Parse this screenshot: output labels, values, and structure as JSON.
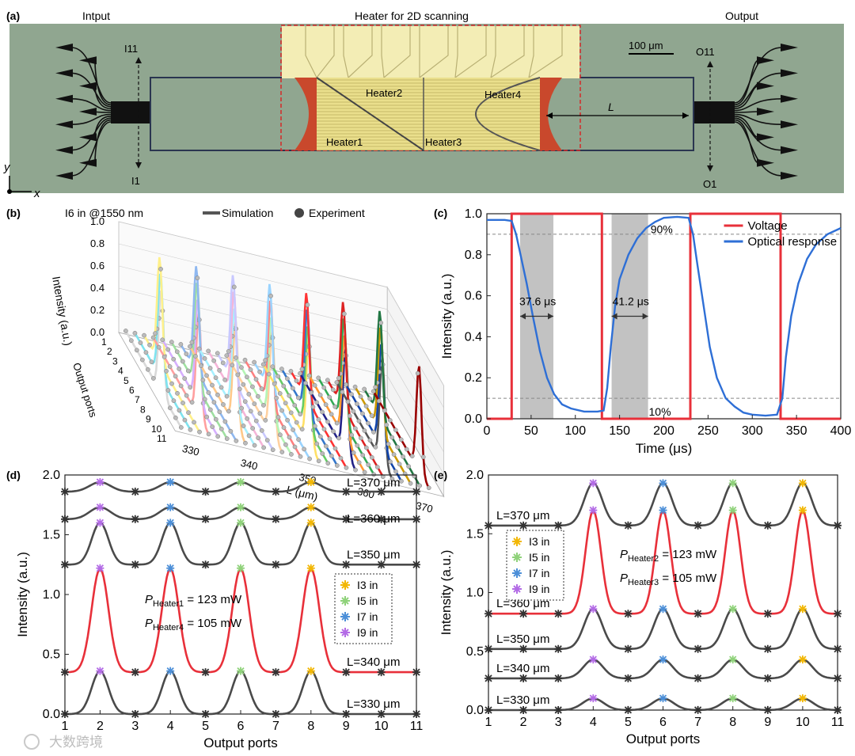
{
  "panel_a": {
    "label": "(a)",
    "title_input": "Intput",
    "title_heater": "Heater for 2D scanning",
    "title_output": "Output",
    "scale_bar": "100 μm",
    "port_top_in": "I11",
    "port_bottom_in": "I1",
    "port_top_out": "O11",
    "port_bottom_out": "O1",
    "heater1": "Heater1",
    "heater2": "Heater2",
    "heater3": "Heater3",
    "heater4": "Heater4",
    "length_label": "L",
    "axis_y": "y",
    "axis_x": "x",
    "colors": {
      "chip": "#8fa48f",
      "heater_pad": "#f2ecb0",
      "heater_zone": "#e9e08c",
      "taper": "#c9482c",
      "box": "#d62828"
    }
  },
  "panel_b": {
    "label": "(b)",
    "condition": "I6 in  @1550 nm",
    "legend_sim": "Simulation",
    "legend_exp": "Experiment",
    "zlabel": "Intensity (a.u.)",
    "ylabel": "Output ports",
    "xlabel": "L (μm)",
    "z_ticks": [
      "1.0",
      "0.8",
      "0.6",
      "0.4",
      "0.2",
      "0.0"
    ],
    "port_ticks": [
      "1",
      "2",
      "3",
      "4",
      "5",
      "6",
      "7",
      "8",
      "9",
      "10",
      "11"
    ],
    "l_ticks": [
      "330",
      "340",
      "350",
      "360",
      "370"
    ]
  },
  "chart_data": [
    {
      "panel": "c",
      "type": "line",
      "label": "(c)",
      "xlabel": "Time (μs)",
      "ylabel": "Intensity (a.u.)",
      "xlim": [
        0,
        400
      ],
      "ylim": [
        0,
        1.0
      ],
      "x_ticks": [
        "0",
        "50",
        "100",
        "150",
        "200",
        "250",
        "300",
        "350",
        "400"
      ],
      "y_ticks": [
        "0.0",
        "0.2",
        "0.4",
        "0.6",
        "0.8",
        "1.0"
      ],
      "series": [
        {
          "name": "Voltage",
          "color": "#e8303a",
          "x": [
            0,
            28,
            28,
            130,
            130,
            230,
            230,
            332,
            332,
            400
          ],
          "y": [
            0,
            0,
            1.0,
            1.0,
            0,
            0,
            1.0,
            1.0,
            0,
            0
          ]
        },
        {
          "name": "Optical response",
          "color": "#2e6fd6",
          "x": [
            0,
            20,
            28,
            33,
            38,
            45,
            52,
            60,
            68,
            76,
            85,
            95,
            110,
            125,
            132,
            136,
            140,
            145,
            150,
            160,
            170,
            180,
            190,
            200,
            215,
            228,
            233,
            238,
            245,
            252,
            260,
            270,
            280,
            290,
            300,
            315,
            328,
            334,
            338,
            344,
            352,
            362,
            372,
            385,
            400
          ],
          "y": [
            0.97,
            0.97,
            0.965,
            0.9,
            0.8,
            0.66,
            0.5,
            0.33,
            0.2,
            0.12,
            0.07,
            0.05,
            0.035,
            0.035,
            0.04,
            0.15,
            0.35,
            0.55,
            0.68,
            0.8,
            0.88,
            0.93,
            0.96,
            0.98,
            0.985,
            0.98,
            0.9,
            0.75,
            0.55,
            0.35,
            0.2,
            0.1,
            0.06,
            0.03,
            0.02,
            0.015,
            0.02,
            0.1,
            0.3,
            0.5,
            0.66,
            0.78,
            0.85,
            0.9,
            0.93
          ]
        }
      ],
      "shaded": [
        [
          37.6,
          75.2
        ],
        [
          141,
          182.2
        ]
      ],
      "guides": [
        0.9,
        0.1
      ],
      "annotations": {
        "fall": "37.6 μs",
        "rise": "41.2 μs",
        "high": "90%",
        "low": "10%"
      }
    },
    {
      "panel": "d",
      "type": "line",
      "label": "(d)",
      "xlabel": "Output ports",
      "ylabel": "Intensity (a.u.)",
      "xlim": [
        1,
        11
      ],
      "ylim": [
        0,
        2.0
      ],
      "x_ticks": [
        "1",
        "2",
        "3",
        "4",
        "5",
        "6",
        "7",
        "8",
        "9",
        "10",
        "11"
      ],
      "y_ticks": [
        "0.0",
        "0.5",
        "1.0",
        "1.5",
        "2.0"
      ],
      "series": [
        {
          "name": "L=330 μm",
          "label": "L=330 μm",
          "color": "#4a4a4a",
          "offset": 0.0,
          "peaks": [
            2,
            4,
            6,
            8
          ],
          "peak": 0.36,
          "base": 0.0,
          "width": 0.24
        },
        {
          "name": "L=340 μm",
          "label": "L=340 μm",
          "color": "#e8303a",
          "offset": 0.35,
          "peaks": [
            2,
            4,
            6,
            8
          ],
          "peak": 1.22,
          "base": 0.35,
          "width": 0.24
        },
        {
          "name": "L=350 μm",
          "label": "L=350 μm",
          "color": "#4a4a4a",
          "offset": 1.25,
          "peaks": [
            2,
            4,
            6,
            8
          ],
          "peak": 1.6,
          "base": 1.25,
          "width": 0.24
        },
        {
          "name": "L=360 μm",
          "label": "L=360 μm",
          "color": "#4a4a4a",
          "offset": 1.55,
          "peaks": [
            2,
            4,
            6,
            8
          ],
          "peak": 1.73,
          "base": 1.63,
          "width": 0.3
        },
        {
          "name": "L=370 μm",
          "label": "L=370 μm",
          "color": "#4a4a4a",
          "offset": 1.85,
          "peaks": [
            2,
            4,
            6,
            8
          ],
          "peak": 1.94,
          "base": 1.86,
          "width": 0.3
        }
      ],
      "power_1": "P",
      "power_1_sub": "Heater1",
      "power_1_val": " = 123 mW",
      "power_2": "P",
      "power_2_sub": "Heater4",
      "power_2_val": " = 105 mW",
      "legend": [
        {
          "name": "I3 in",
          "color": "#f2b705"
        },
        {
          "name": "I5 in",
          "color": "#8fd27a"
        },
        {
          "name": "I7 in",
          "color": "#4c8fd8"
        },
        {
          "name": "I9 in",
          "color": "#b36be6"
        }
      ],
      "marker_order": [
        "#b36be6",
        "#4c8fd8",
        "#8fd27a",
        "#f2b705"
      ]
    },
    {
      "panel": "e",
      "type": "line",
      "label": "(e)",
      "xlabel": "Output ports",
      "ylabel": "Intensity (a.u.)",
      "xlim": [
        1,
        11
      ],
      "ylim": [
        0,
        2.0
      ],
      "x_ticks": [
        "1",
        "2",
        "3",
        "4",
        "5",
        "6",
        "7",
        "8",
        "9",
        "10",
        "11"
      ],
      "y_ticks": [
        "0.0",
        "0.5",
        "1.0",
        "1.5",
        "2.0"
      ],
      "series": [
        {
          "name": "L=330 μm",
          "label": "L=330 μm",
          "color": "#4a4a4a",
          "offset": 0.0,
          "peaks": [
            4,
            6,
            8,
            10
          ],
          "peak": 0.1,
          "base": 0.0,
          "width": 0.3
        },
        {
          "name": "L=340 μm",
          "label": "L=340 μm",
          "color": "#4a4a4a",
          "offset": 0.27,
          "peaks": [
            4,
            6,
            8,
            10
          ],
          "peak": 0.43,
          "base": 0.27,
          "width": 0.28
        },
        {
          "name": "L=350 μm",
          "label": "L=350 μm",
          "color": "#4a4a4a",
          "offset": 0.52,
          "peaks": [
            4,
            6,
            8,
            10
          ],
          "peak": 0.86,
          "base": 0.52,
          "width": 0.26
        },
        {
          "name": "L=360 μm",
          "label": "L=360 μm",
          "color": "#e8303a",
          "offset": 0.82,
          "peaks": [
            4,
            6,
            8,
            10
          ],
          "peak": 1.7,
          "base": 0.82,
          "width": 0.22
        },
        {
          "name": "L=370 μm",
          "label": "L=370 μm",
          "color": "#4a4a4a",
          "offset": 1.57,
          "peaks": [
            4,
            6,
            8,
            10
          ],
          "peak": 1.93,
          "base": 1.57,
          "width": 0.26
        }
      ],
      "power_1": "P",
      "power_1_sub": "Heater2",
      "power_1_val": " = 123 mW",
      "power_2": "P",
      "power_2_sub": "Heater3",
      "power_2_val": " = 105 mW",
      "legend": [
        {
          "name": "I3 in",
          "color": "#f2b705"
        },
        {
          "name": "I5 in",
          "color": "#8fd27a"
        },
        {
          "name": "I7 in",
          "color": "#4c8fd8"
        },
        {
          "name": "I9 in",
          "color": "#b36be6"
        }
      ],
      "marker_order": [
        "#b36be6",
        "#4c8fd8",
        "#8fd27a",
        "#f2b705"
      ]
    }
  ],
  "watermark": "大数跨境"
}
